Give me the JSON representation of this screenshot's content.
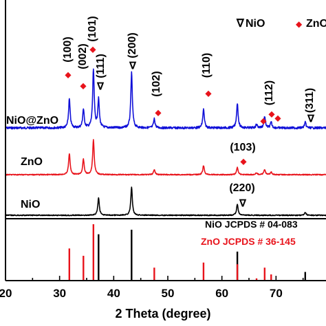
{
  "chart_data": {
    "type": "line",
    "title": "",
    "xlabel": "2 Theta (degree)",
    "ylabel": "",
    "xlim": [
      20,
      80
    ],
    "x_ticks": [
      20,
      30,
      40,
      50,
      60,
      70
    ],
    "x_tick_labels": [
      "20",
      "30",
      "40",
      "50",
      "60",
      "70"
    ],
    "grid": false,
    "legend_position": "top-right",
    "legend": [
      {
        "marker": "∇",
        "label": "NiO",
        "color": "#000000"
      },
      {
        "marker": "◆",
        "label": "ZnO",
        "color": "#e8131b"
      }
    ],
    "series": [
      {
        "name": "NiO@ZnO",
        "color": "#1010d8",
        "peaks": [
          {
            "x": 31.8,
            "height": 0.42
          },
          {
            "x": 34.4,
            "height": 0.27
          },
          {
            "x": 36.25,
            "height": 0.84
          },
          {
            "x": 37.2,
            "height": 0.41
          },
          {
            "x": 43.3,
            "height": 0.8
          },
          {
            "x": 47.5,
            "height": 0.13
          },
          {
            "x": 56.6,
            "height": 0.27
          },
          {
            "x": 62.85,
            "height": 0.36
          },
          {
            "x": 66.4,
            "height": 0.05
          },
          {
            "x": 67.9,
            "height": 0.16
          },
          {
            "x": 69.1,
            "height": 0.08
          },
          {
            "x": 75.4,
            "height": 0.08
          }
        ],
        "annotations": [
          {
            "x": 31.8,
            "text": "(100)",
            "marker": "◆",
            "phase": "ZnO"
          },
          {
            "x": 34.4,
            "text": "(002)",
            "marker": "◆",
            "phase": "ZnO"
          },
          {
            "x": 36.25,
            "text": "(101)",
            "marker": "◆",
            "phase": "ZnO"
          },
          {
            "x": 37.2,
            "text": "(111)",
            "marker": "∇",
            "phase": "NiO"
          },
          {
            "x": 43.3,
            "text": "(200)",
            "marker": "∇",
            "phase": "NiO"
          },
          {
            "x": 47.5,
            "text": "(102)",
            "marker": "◆",
            "phase": "ZnO"
          },
          {
            "x": 56.6,
            "text": "(110)",
            "marker": "◆",
            "phase": "ZnO"
          },
          {
            "x": 67.9,
            "text": "(112)",
            "marker": "◆",
            "phase": "ZnO"
          },
          {
            "x": 75.4,
            "text": "(311)",
            "marker": "∇",
            "phase": "NiO"
          }
        ]
      },
      {
        "name": "ZnO",
        "color": "#e8131b",
        "peaks": [
          {
            "x": 31.8,
            "height": 0.47
          },
          {
            "x": 34.4,
            "height": 0.34
          },
          {
            "x": 36.25,
            "height": 0.78
          },
          {
            "x": 47.5,
            "height": 0.11
          },
          {
            "x": 56.6,
            "height": 0.2
          },
          {
            "x": 62.85,
            "height": 0.16
          },
          {
            "x": 66.4,
            "height": 0.04
          },
          {
            "x": 67.9,
            "height": 0.12
          },
          {
            "x": 69.1,
            "height": 0.06
          }
        ],
        "annotations": [
          {
            "x": 62.85,
            "text": "(103)",
            "marker": "◆",
            "phase": "ZnO"
          }
        ]
      },
      {
        "name": "NiO",
        "color": "#000000",
        "peaks": [
          {
            "x": 37.2,
            "height": 0.39
          },
          {
            "x": 43.3,
            "height": 0.62
          },
          {
            "x": 62.85,
            "height": 0.25
          },
          {
            "x": 75.4,
            "height": 0.07
          }
        ],
        "annotations": [
          {
            "x": 62.85,
            "text": "(220)",
            "marker": "∇",
            "phase": "NiO"
          }
        ]
      }
    ],
    "reference_patterns": [
      {
        "label": "NiO JCPDS # 04-083",
        "color": "#000000",
        "lines": [
          {
            "x": 37.2,
            "intensity": 0.91
          },
          {
            "x": 43.3,
            "intensity": 1.0
          },
          {
            "x": 62.85,
            "intensity": 0.57
          },
          {
            "x": 75.4,
            "intensity": 0.17
          }
        ]
      },
      {
        "label": "ZnO JCPDS # 36-145",
        "color": "#e8131b",
        "lines": [
          {
            "x": 31.8,
            "intensity": 0.57
          },
          {
            "x": 34.4,
            "intensity": 0.44
          },
          {
            "x": 36.25,
            "intensity": 1.0
          },
          {
            "x": 47.5,
            "intensity": 0.23
          },
          {
            "x": 56.6,
            "intensity": 0.32
          },
          {
            "x": 62.85,
            "intensity": 0.29
          },
          {
            "x": 66.4,
            "intensity": 0.04
          },
          {
            "x": 67.9,
            "intensity": 0.23
          },
          {
            "x": 69.1,
            "intensity": 0.11
          }
        ]
      }
    ]
  }
}
